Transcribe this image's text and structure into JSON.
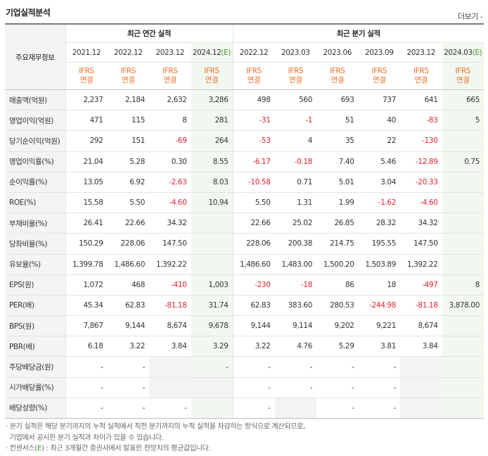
{
  "section_title": "기업실적분석",
  "more_label": "더보기",
  "row_header_label": "주요재무정보",
  "group_annual": "최근 연간 실적",
  "group_quarter": "최근 분기 실적",
  "periods": [
    {
      "label": "2021.12",
      "est": ""
    },
    {
      "label": "2022.12",
      "est": ""
    },
    {
      "label": "2023.12",
      "est": ""
    },
    {
      "label": "2024.12",
      "est": "(E)"
    },
    {
      "label": "2022.12",
      "est": ""
    },
    {
      "label": "2023.03",
      "est": ""
    },
    {
      "label": "2023.06",
      "est": ""
    },
    {
      "label": "2023.09",
      "est": ""
    },
    {
      "label": "2023.12",
      "est": ""
    },
    {
      "label": "2024.03",
      "est": "(E)"
    }
  ],
  "ifrs_top": "IFRS",
  "ifrs_bottom": "연결",
  "rows": [
    {
      "label": "매출액(억원)",
      "values": [
        "2,237",
        "2,184",
        "2,632",
        "3,286",
        "498",
        "560",
        "693",
        "737",
        "641",
        "665"
      ]
    },
    {
      "label": "영업이익(억원)",
      "values": [
        "471",
        "115",
        "8",
        "281",
        "-31",
        "-1",
        "51",
        "40",
        "-83",
        "5"
      ]
    },
    {
      "label": "당기순이익(억원)",
      "values": [
        "292",
        "151",
        "-69",
        "264",
        "-53",
        "4",
        "35",
        "22",
        "-130",
        ""
      ]
    },
    {
      "label": "영업이익률(%)",
      "values": [
        "21.04",
        "5.28",
        "0.30",
        "8.55",
        "-6.17",
        "-0.18",
        "7.40",
        "5.46",
        "-12.89",
        "0.75"
      ]
    },
    {
      "label": "순이익률(%)",
      "values": [
        "13.05",
        "6.92",
        "-2.63",
        "8.03",
        "-10.58",
        "0.71",
        "5.01",
        "3.04",
        "-20.33",
        ""
      ]
    },
    {
      "label": "ROE(%)",
      "values": [
        "15.58",
        "5.50",
        "-4.60",
        "10.94",
        "5.50",
        "1.31",
        "1.99",
        "-1.62",
        "-4.60",
        ""
      ]
    },
    {
      "label": "부채비율(%)",
      "values": [
        "26.41",
        "22.66",
        "34.32",
        "",
        "22.66",
        "25.02",
        "26.85",
        "28.32",
        "34.32",
        ""
      ]
    },
    {
      "label": "당좌비율(%)",
      "values": [
        "150.29",
        "228.06",
        "147.50",
        "",
        "228.06",
        "200.38",
        "214.75",
        "195.55",
        "147.50",
        ""
      ]
    },
    {
      "label": "유보율(%)",
      "values": [
        "1,399.78",
        "1,486.60",
        "1,392.22",
        "",
        "1,486.60",
        "1,483.00",
        "1,500.20",
        "1,503.89",
        "1,392.22",
        ""
      ]
    },
    {
      "label": "EPS(원)",
      "values": [
        "1,072",
        "468",
        "-410",
        "1,003",
        "-230",
        "-18",
        "86",
        "18",
        "-497",
        "8"
      ]
    },
    {
      "label": "PER(배)",
      "values": [
        "45.34",
        "62.83",
        "-81.18",
        "31.74",
        "62.83",
        "383.60",
        "280.53",
        "-244.98",
        "-81.18",
        "3,878.00"
      ]
    },
    {
      "label": "BPS(원)",
      "values": [
        "7,867",
        "9,144",
        "8,674",
        "9,678",
        "9,144",
        "9,114",
        "9,202",
        "9,221",
        "8,674",
        ""
      ]
    },
    {
      "label": "PBR(배)",
      "values": [
        "6.18",
        "3.22",
        "3.84",
        "3.29",
        "3.22",
        "4.76",
        "5.29",
        "3.81",
        "3.84",
        ""
      ]
    },
    {
      "label": "주당배당금(원)",
      "values": [
        "-",
        "-",
        "",
        "-",
        "-",
        "-",
        "-",
        "-",
        "",
        ""
      ]
    },
    {
      "label": "시가배당률(%)",
      "values": [
        "-",
        "-",
        "",
        "",
        "-",
        "-",
        "-",
        "-",
        "",
        ""
      ]
    },
    {
      "label": "배당성향(%)",
      "values": [
        "-",
        "-",
        "-",
        "",
        "-",
        "",
        "-",
        "-",
        "",
        ""
      ]
    }
  ],
  "blank_cells": [
    [
      13,
      2
    ],
    [
      13,
      8
    ],
    [
      14,
      2
    ],
    [
      14,
      3
    ],
    [
      14,
      8
    ],
    [
      15,
      5
    ],
    [
      15,
      8
    ]
  ],
  "notes": {
    "line1": "분기 실적은 해당 분기까지의 누적 실적에서 직전 분기까지의 누적 실적을 차감하는 방식으로 계산되므로,",
    "line2": "기업에서 공시한 분기 실적과 차이가 있을 수 있습니다.",
    "line3_prefix": "컨센서스(",
    "line3_e": "E",
    "line3_suffix": ") : 최근 3개월간 증권사에서 발표한 전망치의 평균값입니다."
  }
}
